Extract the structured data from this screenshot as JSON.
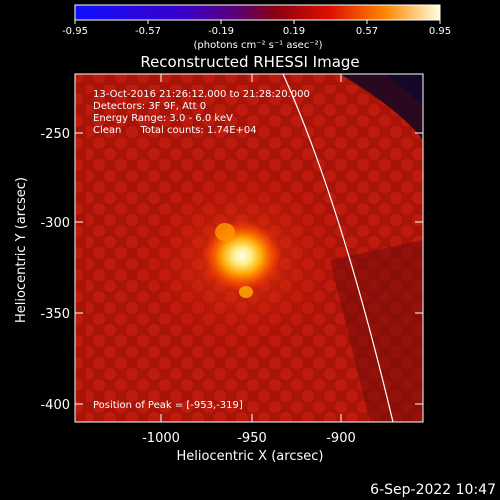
{
  "colorbar": {
    "tick_labels": [
      "-0.95",
      "-0.57",
      "-0.19",
      "0.19",
      "0.57",
      "0.95"
    ],
    "unit_label": "(photons cm⁻² s⁻¹ asec⁻²)"
  },
  "title": "Reconstructed RHESSI Image",
  "info": {
    "line1": "13-Oct-2016 21:26:12.000 to 21:28:20.000",
    "line2": "Detectors: 3F 9F, Att 0",
    "line3": "Energy Range: 3.0 - 6.0 keV",
    "line4": "Clean      Total counts: 1.74E+04",
    "peak": "Position of Peak = [-953,-319]"
  },
  "axes": {
    "xlabel": "Heliocentric X (arcsec)",
    "ylabel": "Heliocentric Y (arcsec)",
    "xticks": [
      "-1000",
      "-950",
      "-900"
    ],
    "yticks": [
      "-250",
      "-300",
      "-350",
      "-400"
    ]
  },
  "colors": {
    "limb_line": "#ffffff",
    "background": "#000000"
  },
  "footer": {
    "date": "6-Sep-2022 10:47"
  }
}
